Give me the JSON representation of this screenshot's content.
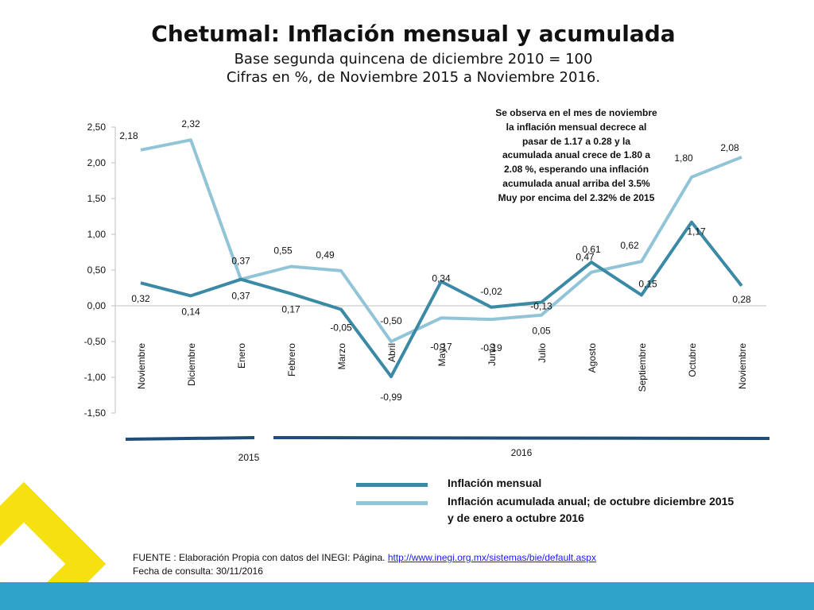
{
  "title": "Chetumal: Inflación mensual y acumulada",
  "subtitle1": "Base segunda quincena de diciembre 2010 = 100",
  "subtitle2": "Cifras en %,  de Noviembre 2015 a Noviembre 2016.",
  "annotation": [
    "Se observa en el mes de noviembre",
    "la inflación mensual decrece al",
    "pasar de 1.17 a  0.28 y la",
    "acumulada anual crece de 1.80 a",
    "2.08 %, esperando una inflación",
    "acumulada anual arriba del 3.5%",
    "Muy por encima del 2.32% de 2015"
  ],
  "legend": {
    "monthly": "Inflación mensual",
    "cumulative_line1": "Inflación  acumulada anual; de octubre  diciembre 2015",
    "cumulative_line2": "y de enero a octubre 2016"
  },
  "footer": {
    "source_prefix": "FUENTE : Elaboración Propia con datos del INEGI: Página. ",
    "source_link": "http://www.inegi.org.mx/sistemas/bie/default.aspx",
    "date": "Fecha de consulta: 30/11/2016"
  },
  "colors": {
    "monthly": "#3a8aa6",
    "cumulative": "#92c4d8",
    "year_bar": "#1f4e79",
    "accent_yellow": "#f5e10f",
    "bottom_band": "#2fa3c9"
  },
  "chart_data": {
    "type": "line",
    "categories": [
      "Noviembre",
      "Diciembre",
      "Enero",
      "Febrero",
      "Marzo",
      "Abril",
      "Mayo",
      "Junio",
      "Julio",
      "Agosto",
      "Septiembre",
      "Octubre",
      "Noviembre"
    ],
    "year_groups": [
      {
        "label": "2015",
        "categories": [
          "Noviembre",
          "Diciembre"
        ]
      },
      {
        "label": "2016",
        "categories": [
          "Enero",
          "Febrero",
          "Marzo",
          "Abril",
          "Mayo",
          "Junio",
          "Julio",
          "Agosto",
          "Septiembre",
          "Octubre",
          "Noviembre"
        ]
      }
    ],
    "series": [
      {
        "name": "Inflación mensual",
        "values": [
          0.32,
          0.14,
          0.37,
          0.17,
          -0.05,
          -0.99,
          0.34,
          -0.02,
          0.05,
          0.61,
          0.15,
          1.17,
          0.28
        ],
        "labels": [
          "0,32",
          "0,14",
          "0,37",
          "0,17",
          "-0,05",
          "-0,99",
          "0,34",
          "-0,02",
          "0,05",
          "0,61",
          "0,15",
          "1,17",
          "0,28"
        ]
      },
      {
        "name": "Inflación  acumulada anual; de octubre  diciembre 2015 y de enero a octubre 2016",
        "values": [
          2.18,
          2.32,
          0.37,
          0.55,
          0.49,
          -0.5,
          -0.17,
          -0.19,
          -0.13,
          0.47,
          0.62,
          1.8,
          2.08
        ],
        "labels": [
          "2,18",
          "2,32",
          "0,37",
          "0,55",
          "0,49",
          "-0,50",
          "-0,17",
          "-0,19",
          "-0,13",
          "0,47",
          "0,62",
          "1,80",
          "2,08"
        ]
      }
    ],
    "ylim": [
      -1.5,
      2.5
    ],
    "yticks": [
      2.5,
      2.0,
      1.5,
      1.0,
      0.5,
      0.0,
      -0.5,
      -1.0,
      -1.5
    ],
    "ytick_labels": [
      "2,50",
      "2,00",
      "1,50",
      "1,00",
      "0,50",
      "0,00",
      "-0,50",
      "-1,00",
      "-1,50"
    ],
    "grid": false,
    "xlabel": "",
    "ylabel": ""
  }
}
